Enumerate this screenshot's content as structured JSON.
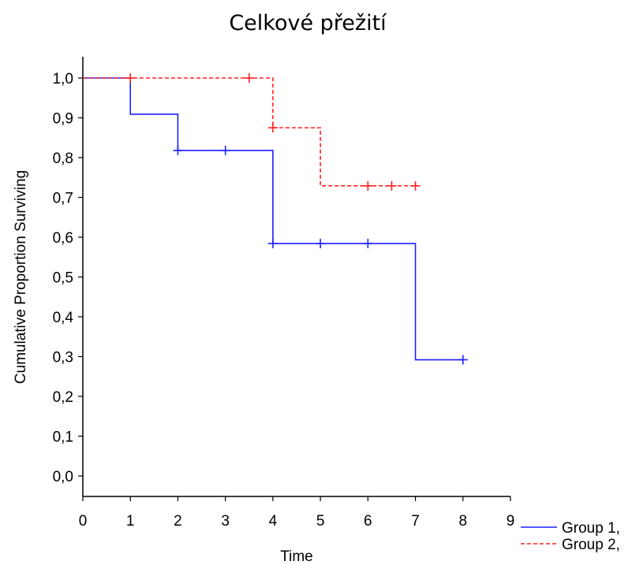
{
  "chart_data": {
    "type": "line",
    "subtype": "kaplan-meier-step",
    "title": "Celkové přežití",
    "xlabel": "Time",
    "ylabel": "Cumulative Proportion Surviving",
    "xlim": [
      0,
      9
    ],
    "ylim": [
      0,
      1
    ],
    "x_ticks": [
      "0",
      "1",
      "2",
      "3",
      "4",
      "5",
      "6",
      "7",
      "8",
      "9"
    ],
    "y_ticks": [
      "0,0",
      "0,1",
      "0,2",
      "0,3",
      "0,4",
      "0,5",
      "0,6",
      "0,7",
      "0,8",
      "0,9",
      "1,0"
    ],
    "grid": false,
    "legend_position": "bottom-right",
    "series": [
      {
        "name": "Group 1,",
        "color": "#1f1fff",
        "style": "solid",
        "steps": [
          {
            "x": 0,
            "y": 1.0
          },
          {
            "x": 1,
            "y": 0.909
          },
          {
            "x": 2,
            "y": 0.818
          },
          {
            "x": 4,
            "y": 0.584
          },
          {
            "x": 7,
            "y": 0.292
          }
        ],
        "end_x": 8,
        "censored": [
          {
            "x": 2,
            "y": 0.818
          },
          {
            "x": 3,
            "y": 0.818
          },
          {
            "x": 4,
            "y": 0.584
          },
          {
            "x": 5,
            "y": 0.584
          },
          {
            "x": 6,
            "y": 0.584
          },
          {
            "x": 8,
            "y": 0.292
          }
        ]
      },
      {
        "name": "Group 2,",
        "color": "#ff2020",
        "style": "dashed",
        "steps": [
          {
            "x": 0,
            "y": 1.0
          },
          {
            "x": 4,
            "y": 0.875
          },
          {
            "x": 5,
            "y": 0.729
          }
        ],
        "end_x": 7,
        "censored": [
          {
            "x": 1,
            "y": 1.0
          },
          {
            "x": 3.5,
            "y": 1.0
          },
          {
            "x": 4,
            "y": 0.875
          },
          {
            "x": 6,
            "y": 0.729
          },
          {
            "x": 6.5,
            "y": 0.729
          },
          {
            "x": 7,
            "y": 0.729
          }
        ]
      }
    ]
  }
}
